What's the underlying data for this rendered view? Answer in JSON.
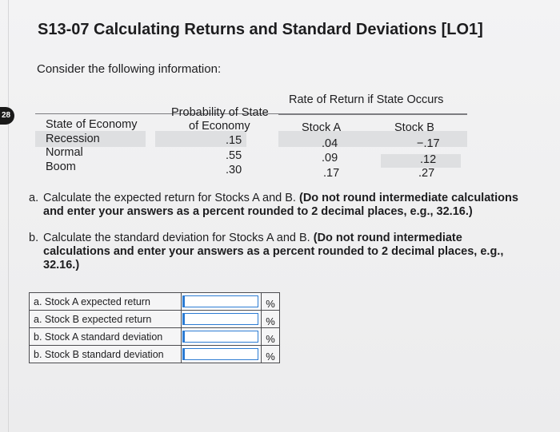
{
  "page": {
    "page_tab": "28",
    "title": "S13-07 Calculating Returns and Standard Deviations [LO1]",
    "intro": "Consider the following information:"
  },
  "table": {
    "group_header": "Rate of Return if State Occurs",
    "col_state": "State of Economy",
    "col_prob_line1": "Probability of State",
    "col_prob_line2": "of Economy",
    "col_a": "Stock A",
    "col_b": "Stock B",
    "rows": [
      {
        "state": "Recession",
        "prob": ".15",
        "a": ".04",
        "b": "−.17"
      },
      {
        "state": "Normal",
        "prob": ".55",
        "a": ".09",
        "b": ".12"
      },
      {
        "state": "Boom",
        "prob": ".30",
        "a": ".17",
        "b": ".27"
      }
    ]
  },
  "questions": {
    "a": {
      "marker": "a.",
      "text": "Calculate the expected return for Stocks A and B. ",
      "bold": "(Do not round intermediate calculations and enter your answers as a percent rounded to 2 decimal places, e.g., 32.16.)"
    },
    "b": {
      "marker": "b.",
      "text": "Calculate the standard deviation for Stocks A and B. ",
      "bold": "(Do not round intermediate calculations and enter your answers as a percent rounded to 2 decimal places, e.g., 32.16.)"
    }
  },
  "answers": [
    {
      "label": "a. Stock A expected return",
      "value": "",
      "unit": "%"
    },
    {
      "label": "a. Stock B expected return",
      "value": "",
      "unit": "%"
    },
    {
      "label": "b. Stock A standard deviation",
      "value": "",
      "unit": "%"
    },
    {
      "label": "b. Stock B standard deviation",
      "value": "",
      "unit": "%"
    }
  ]
}
